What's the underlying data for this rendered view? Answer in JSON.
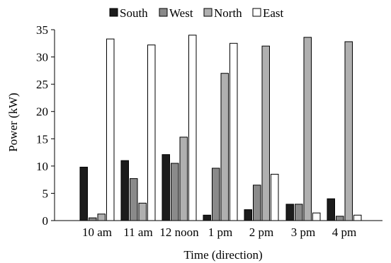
{
  "chart_data": {
    "type": "bar",
    "title": "",
    "xlabel": "Time (direction)",
    "ylabel": "Power (kW)",
    "ylim": [
      0,
      35
    ],
    "yticks": [
      0,
      5,
      10,
      15,
      20,
      25,
      30,
      35
    ],
    "categories": [
      "10 am",
      "11 am",
      "12 noon",
      "1 pm",
      "2 pm",
      "3 pm",
      "4 pm"
    ],
    "legend_position": "top-center",
    "grid": false,
    "series": [
      {
        "name": "South",
        "color": "#1c1c1c",
        "values": [
          9.8,
          11.0,
          12.1,
          1.0,
          2.0,
          3.0,
          4.0
        ]
      },
      {
        "name": "West",
        "color": "#8a8a8a",
        "values": [
          0.5,
          7.7,
          10.5,
          9.6,
          6.5,
          3.0,
          0.8
        ]
      },
      {
        "name": "North",
        "color": "#b0b0b0",
        "values": [
          1.2,
          3.2,
          15.3,
          27.0,
          32.0,
          33.6,
          32.8
        ]
      },
      {
        "name": "East",
        "color": "#ffffff",
        "values": [
          33.3,
          32.2,
          34.0,
          32.5,
          8.5,
          1.4,
          1.0
        ]
      }
    ]
  }
}
